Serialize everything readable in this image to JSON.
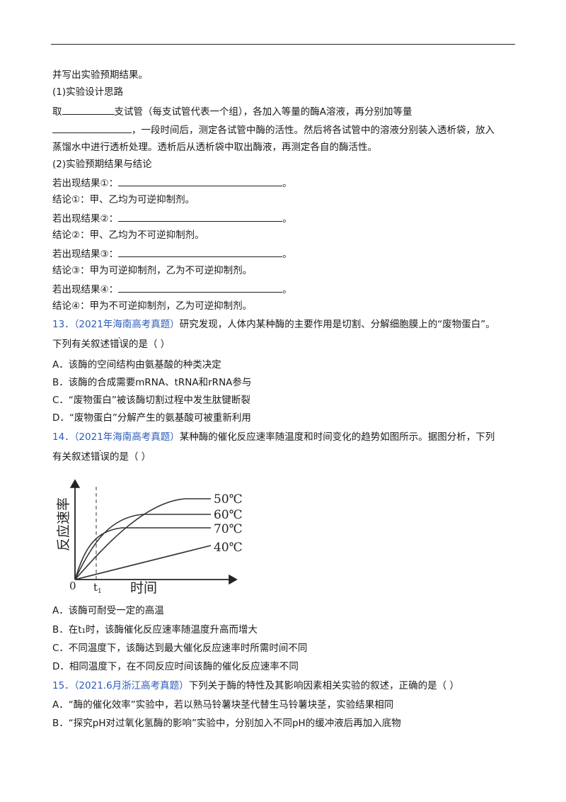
{
  "intro": {
    "l1": "并写出实验预期结果。",
    "h1": "(1)实验设计思路",
    "p1a": "取",
    "p1b": "支试管（每支试管代表一个组），各加入等量的酶A溶液，再分别加等量",
    "p2": "，一段时间后，测定各试管中酶的活性。然后将各试管中的溶液分别装入透析袋，放入",
    "p3": "蒸馏水中进行透析处理。透析后从透析袋中取出酶液，再测定各自的酶活性。",
    "h2": "(2)实验预期结果与结论",
    "rows": [
      {
        "result_label": "若出现结果①：",
        "end": "。",
        "conclusion": "结论①：甲、乙均为可逆抑制剂。"
      },
      {
        "result_label": "若出现结果②：",
        "end": "。",
        "conclusion": "结论②：甲、乙均为不可逆抑制剂。"
      },
      {
        "result_label": "若出现结果③：",
        "end": "。",
        "conclusion": "结论③：甲为可逆抑制剂，乙为不可逆抑制剂。"
      },
      {
        "result_label": "若出现结果④：",
        "end": "。",
        "conclusion": "结论④：甲为不可逆抑制剂，乙为可逆抑制剂。"
      }
    ]
  },
  "q13": {
    "num": "13．",
    "source": "（2021年海南高考真题）",
    "stem1": "研究发现，人体内某种酶的主要作用是切割、分解细胞膜上的“废物蛋白”。",
    "stem2a": "下列有关叙述",
    "stem2_emph": "错误",
    "stem2b": "的是（      ）",
    "options": [
      "A．该酶的空间结构由氨基酸的种类决定",
      "B．该酶的合成需要mRNA、tRNA和rRNA参与",
      "C．“废物蛋白”被该酶切割过程中发生肽键断裂",
      "D．“废物蛋白”分解产生的氨基酸可被重新利用"
    ]
  },
  "q14": {
    "num": "14．",
    "source": "（2021年海南高考真题）",
    "stem1": "某种酶的催化反应速率随温度和时间变化的趋势如图所示。据图分析，下列",
    "stem2a": "有关叙述",
    "stem2_emph": "错误",
    "stem2b": "的是（      ）",
    "figure": {
      "ylabel": "反应速率",
      "xlabel": "时间",
      "origin": "0",
      "t1": "t",
      "t1_sub": "1",
      "curves": [
        "50℃",
        "60℃",
        "70℃",
        "40℃"
      ]
    },
    "options": [
      "A．该酶可耐受一定的高温",
      "B．在t₁时，该酶催化反应速率随温度升高而增大",
      "C．不同温度下，该酶达到最大催化反应速率时所需时间不同",
      "D．相同温度下，在不同反应时间该酶的催化反应速率不同"
    ]
  },
  "q15": {
    "num": "15．",
    "source": "（2021.6月浙江高考真题）",
    "stem": "下列关于酶的特性及其影响因素相关实验的叙述，正确的是（      ）",
    "options": [
      "A．“酶的催化效率”实验中，若以熟马铃薯块茎代替生马铃薯块茎，实验结果相同",
      "B．“探究pH对过氧化氢酶的影响”实验中，分别加入不同pH的缓冲液后再加入底物"
    ]
  }
}
